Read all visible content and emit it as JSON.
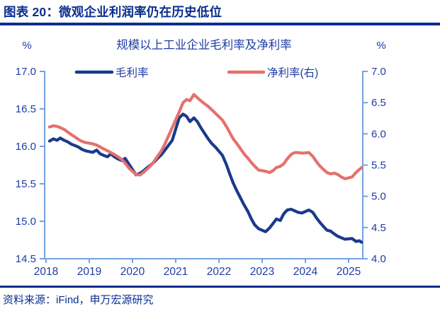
{
  "header": {
    "title": "图表 20：微观企业利润率仍在历史低位"
  },
  "footer": {
    "source": "资料来源：iFind，申万宏源研究"
  },
  "chart_data": {
    "type": "line",
    "title": "规模以上工业企业毛利率及净利率",
    "left_axis": {
      "unit": "%",
      "min": 14.5,
      "max": 17.0,
      "step": 0.5,
      "ticks": [
        "17.0",
        "16.5",
        "16.0",
        "15.5",
        "15.0",
        "14.5"
      ]
    },
    "right_axis": {
      "unit": "%",
      "min": 4.0,
      "max": 7.0,
      "step": 0.5,
      "ticks": [
        "7.0",
        "6.5",
        "6.0",
        "5.5",
        "5.0",
        "4.5",
        "4.0"
      ]
    },
    "x_axis": {
      "tick_years": [
        "2018",
        "2019",
        "2020",
        "2021",
        "2022",
        "2023",
        "2024",
        "2025"
      ],
      "min": 2018,
      "max": 2025.35
    },
    "legend": [
      {
        "label": "毛利率",
        "color": "#1a3a8c"
      },
      {
        "label": "净利率(右)",
        "color": "#e5716d"
      }
    ],
    "grid": false,
    "legend_position": "top",
    "series": [
      {
        "name": "毛利率",
        "axis": "left",
        "color": "#1a3a8c",
        "x": [
          2018.08,
          2018.17,
          2018.25,
          2018.33,
          2018.42,
          2018.5,
          2018.58,
          2018.67,
          2018.75,
          2018.83,
          2018.92,
          2019.08,
          2019.17,
          2019.25,
          2019.33,
          2019.42,
          2019.5,
          2019.58,
          2019.67,
          2019.75,
          2019.83,
          2019.92,
          2020.08,
          2020.17,
          2020.25,
          2020.33,
          2020.42,
          2020.5,
          2020.58,
          2020.67,
          2020.75,
          2020.83,
          2020.92,
          2021.08,
          2021.17,
          2021.25,
          2021.33,
          2021.42,
          2021.5,
          2021.58,
          2021.67,
          2021.75,
          2021.83,
          2021.92,
          2022.08,
          2022.17,
          2022.25,
          2022.33,
          2022.42,
          2022.5,
          2022.58,
          2022.67,
          2022.75,
          2022.83,
          2022.92,
          2023.08,
          2023.17,
          2023.25,
          2023.33,
          2023.42,
          2023.5,
          2023.58,
          2023.67,
          2023.75,
          2023.83,
          2023.92,
          2024.08,
          2024.17,
          2024.25,
          2024.33,
          2024.42,
          2024.5,
          2024.58,
          2024.67,
          2024.75,
          2024.83,
          2024.92,
          2025.08,
          2025.17,
          2025.25,
          2025.3
        ],
        "values": [
          16.07,
          16.1,
          16.08,
          16.11,
          16.08,
          16.06,
          16.03,
          16.01,
          15.99,
          15.96,
          15.94,
          15.92,
          15.95,
          15.9,
          15.88,
          15.86,
          15.9,
          15.86,
          15.83,
          15.81,
          15.84,
          15.76,
          15.62,
          15.64,
          15.67,
          15.71,
          15.75,
          15.79,
          15.84,
          15.89,
          15.95,
          16.01,
          16.08,
          16.38,
          16.43,
          16.4,
          16.33,
          16.38,
          16.33,
          16.25,
          16.17,
          16.1,
          16.04,
          15.99,
          15.88,
          15.76,
          15.63,
          15.51,
          15.4,
          15.31,
          15.22,
          15.13,
          15.03,
          14.95,
          14.9,
          14.86,
          14.91,
          14.97,
          15.03,
          15.01,
          15.1,
          15.15,
          15.16,
          15.14,
          15.12,
          15.11,
          15.15,
          15.12,
          15.05,
          14.99,
          14.93,
          14.88,
          14.87,
          14.83,
          14.8,
          14.78,
          14.76,
          14.77,
          14.73,
          14.74,
          14.72
        ]
      },
      {
        "name": "净利率(右)",
        "axis": "right",
        "color": "#e5716d",
        "x": [
          2018.08,
          2018.17,
          2018.25,
          2018.33,
          2018.42,
          2018.5,
          2018.58,
          2018.67,
          2018.75,
          2018.83,
          2018.92,
          2019.08,
          2019.17,
          2019.25,
          2019.33,
          2019.42,
          2019.5,
          2019.58,
          2019.67,
          2019.75,
          2019.83,
          2019.92,
          2020.08,
          2020.17,
          2020.25,
          2020.33,
          2020.42,
          2020.5,
          2020.58,
          2020.67,
          2020.75,
          2020.83,
          2020.92,
          2021.08,
          2021.17,
          2021.25,
          2021.33,
          2021.42,
          2021.5,
          2021.58,
          2021.67,
          2021.75,
          2021.83,
          2021.92,
          2022.08,
          2022.17,
          2022.25,
          2022.33,
          2022.42,
          2022.5,
          2022.58,
          2022.67,
          2022.75,
          2022.83,
          2022.92,
          2023.08,
          2023.17,
          2023.25,
          2023.33,
          2023.42,
          2023.5,
          2023.58,
          2023.67,
          2023.75,
          2023.83,
          2023.92,
          2024.08,
          2024.17,
          2024.25,
          2024.33,
          2024.42,
          2024.5,
          2024.58,
          2024.67,
          2024.75,
          2024.83,
          2024.92,
          2025.08,
          2025.17,
          2025.25,
          2025.3
        ],
        "values": [
          6.11,
          6.13,
          6.12,
          6.1,
          6.07,
          6.03,
          5.99,
          5.95,
          5.91,
          5.88,
          5.86,
          5.84,
          5.82,
          5.79,
          5.76,
          5.73,
          5.7,
          5.67,
          5.63,
          5.59,
          5.53,
          5.45,
          5.35,
          5.34,
          5.38,
          5.43,
          5.49,
          5.56,
          5.64,
          5.73,
          5.84,
          5.96,
          6.1,
          6.35,
          6.5,
          6.55,
          6.53,
          6.63,
          6.58,
          6.53,
          6.48,
          6.44,
          6.39,
          6.33,
          6.22,
          6.12,
          6.02,
          5.92,
          5.84,
          5.76,
          5.68,
          5.61,
          5.54,
          5.48,
          5.42,
          5.4,
          5.38,
          5.41,
          5.46,
          5.48,
          5.52,
          5.6,
          5.67,
          5.7,
          5.7,
          5.69,
          5.7,
          5.64,
          5.56,
          5.49,
          5.43,
          5.38,
          5.36,
          5.37,
          5.35,
          5.31,
          5.28,
          5.31,
          5.38,
          5.43,
          5.46
        ]
      }
    ],
    "colors": {
      "brand": "#0a2e8e",
      "chart_text": "#1e3ca4",
      "axis_line": "#74a3dc",
      "gross_line": "#1a3a8c",
      "net_line": "#e5716d"
    }
  }
}
